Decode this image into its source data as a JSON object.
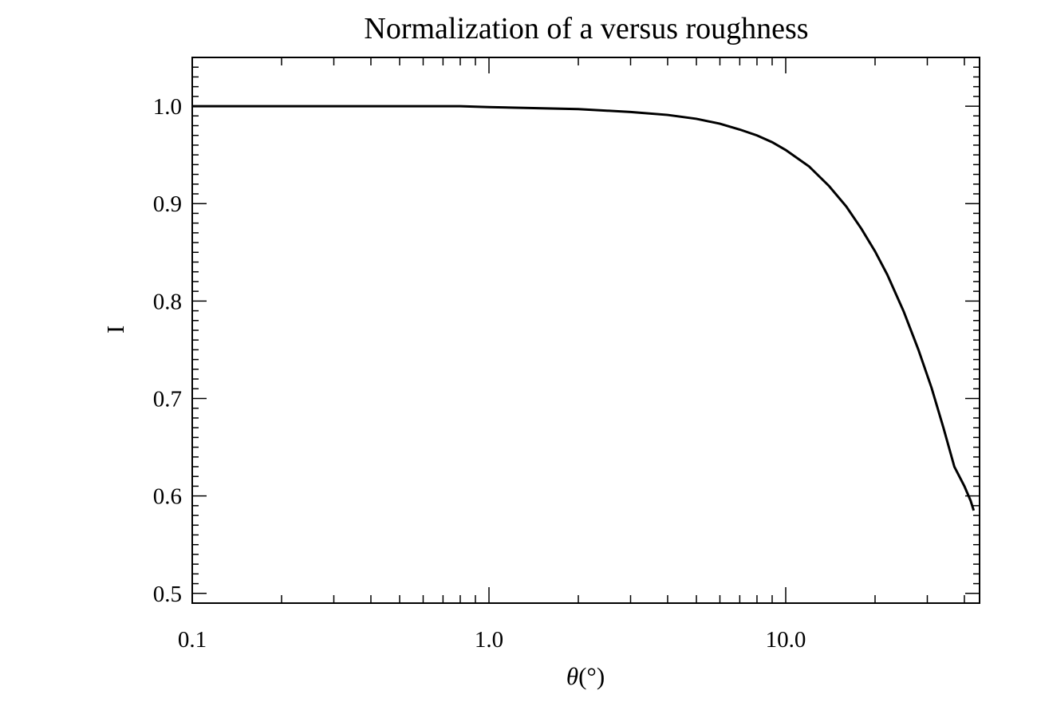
{
  "chart_data": {
    "type": "line",
    "title": "Normalization of a versus roughness",
    "xlabel": "θ(°)",
    "xlabel_symbol": "θ",
    "xlabel_unit": "(°)",
    "ylabel": "I",
    "x_scale": "log",
    "xlim": [
      0.1,
      45
    ],
    "ylim": [
      0.49,
      1.05
    ],
    "grid": false,
    "x_ticks": [
      {
        "value": 0.1,
        "label": "0.1"
      },
      {
        "value": 1.0,
        "label": "1.0"
      },
      {
        "value": 10.0,
        "label": "10.0"
      }
    ],
    "y_ticks": [
      {
        "value": 0.5,
        "label": "0.5"
      },
      {
        "value": 0.6,
        "label": "0.6"
      },
      {
        "value": 0.7,
        "label": "0.7"
      },
      {
        "value": 0.8,
        "label": "0.8"
      },
      {
        "value": 0.9,
        "label": "0.9"
      },
      {
        "value": 1.0,
        "label": "1.0"
      }
    ],
    "series": [
      {
        "color": "#000000",
        "x": [
          0.1,
          0.3,
          0.5,
          0.8,
          1.0,
          2.0,
          3.0,
          4.0,
          5.0,
          6.0,
          7.0,
          8.0,
          9.0,
          10.0,
          12.0,
          14.0,
          16.0,
          18.0,
          20.0,
          22.0,
          25.0,
          28.0,
          31.0,
          34.0,
          37.0,
          40.0,
          42.0,
          43.0
        ],
        "y": [
          1.0,
          1.0,
          1.0,
          1.0,
          0.999,
          0.997,
          0.994,
          0.991,
          0.987,
          0.982,
          0.976,
          0.97,
          0.963,
          0.955,
          0.938,
          0.918,
          0.897,
          0.874,
          0.851,
          0.827,
          0.789,
          0.75,
          0.711,
          0.67,
          0.63,
          0.61,
          0.595,
          0.585
        ]
      }
    ]
  }
}
